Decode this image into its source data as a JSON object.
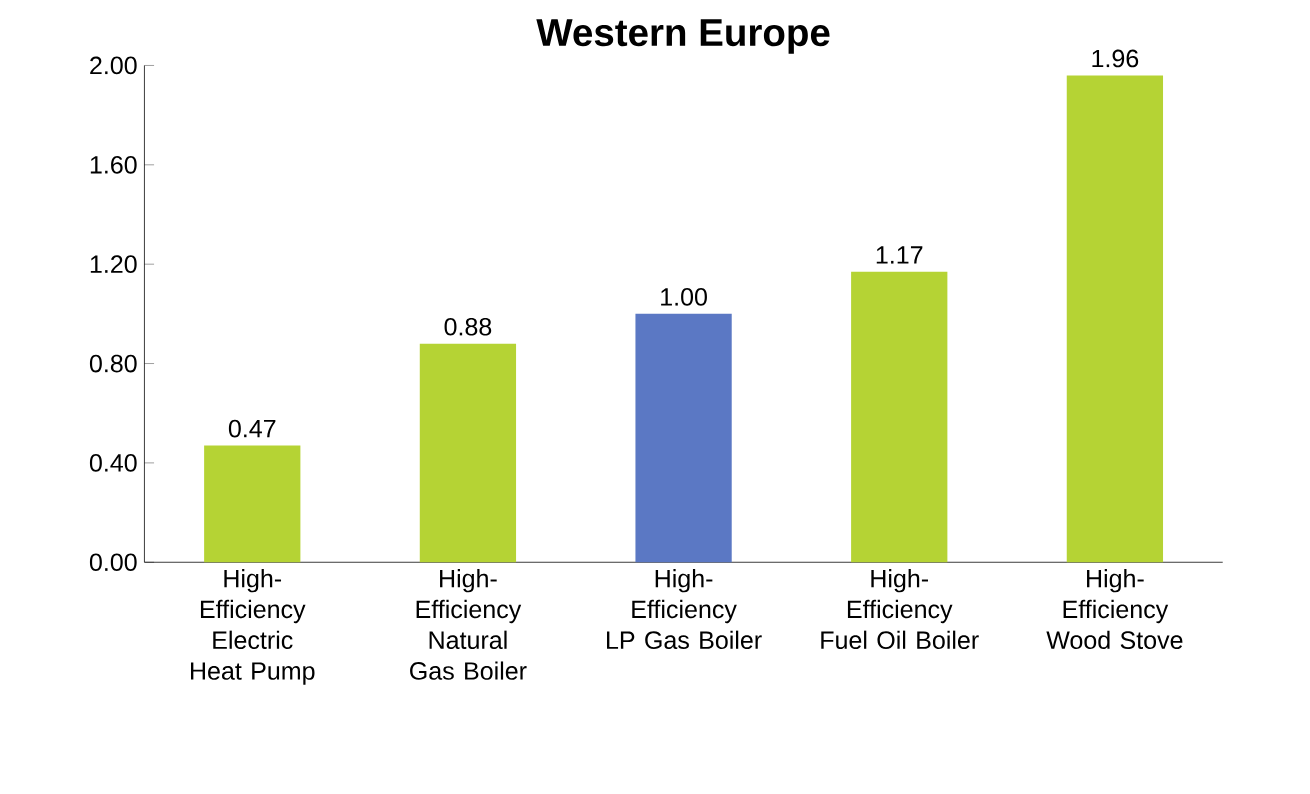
{
  "chart_data": {
    "type": "bar",
    "title": "Western Europe",
    "categories": [
      "High-Efficiency Electric Heat Pump",
      "High-Efficiency Natural Gas Boiler",
      "High-Efficiency LP Gas Boiler",
      "High-Efficiency Fuel Oil Boiler",
      "High-Efficiency Wood Stove"
    ],
    "values": [
      0.47,
      0.88,
      1.0,
      1.17,
      1.96
    ],
    "colors": [
      "#b5d334",
      "#b5d334",
      "#5b78c4",
      "#b5d334",
      "#b5d334"
    ],
    "value_labels": [
      "0.47",
      "0.88",
      "1.00",
      "1.17",
      "1.96"
    ],
    "ylim": [
      0,
      2.0
    ],
    "yticks": [
      {
        "value": 0,
        "label": "0.00"
      },
      {
        "value": 0.4,
        "label": "0.40"
      },
      {
        "value": 0.8,
        "label": "0.80"
      },
      {
        "value": 1.2,
        "label": "1.20"
      },
      {
        "value": 1.6,
        "label": "1.60"
      },
      {
        "value": 2.0,
        "label": "2.00"
      }
    ],
    "grid": false
  }
}
